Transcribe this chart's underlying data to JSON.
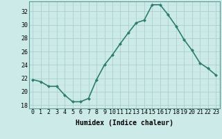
{
  "x": [
    0,
    1,
    2,
    3,
    4,
    5,
    6,
    7,
    8,
    9,
    10,
    11,
    12,
    13,
    14,
    15,
    16,
    17,
    18,
    19,
    20,
    21,
    22,
    23
  ],
  "y": [
    21.8,
    21.5,
    20.8,
    20.8,
    19.5,
    18.5,
    18.5,
    19.0,
    21.8,
    24.0,
    25.5,
    27.2,
    28.8,
    30.3,
    30.7,
    33.0,
    33.0,
    31.5,
    29.8,
    27.8,
    26.2,
    24.3,
    23.5,
    22.5
  ],
  "line_color": "#2e7d6e",
  "marker": "D",
  "marker_size": 2,
  "background_color": "#cceae7",
  "grid_color_major": "#aacfcc",
  "grid_color_minor": "#bddbd8",
  "xlabel": "Humidex (Indice chaleur)",
  "ylim": [
    17.5,
    33.5
  ],
  "yticks": [
    18,
    20,
    22,
    24,
    26,
    28,
    30,
    32
  ],
  "xticks": [
    0,
    1,
    2,
    3,
    4,
    5,
    6,
    7,
    8,
    9,
    10,
    11,
    12,
    13,
    14,
    15,
    16,
    17,
    18,
    19,
    20,
    21,
    22,
    23
  ],
  "xlabel_fontsize": 7,
  "tick_fontsize": 6,
  "line_width": 1.2
}
